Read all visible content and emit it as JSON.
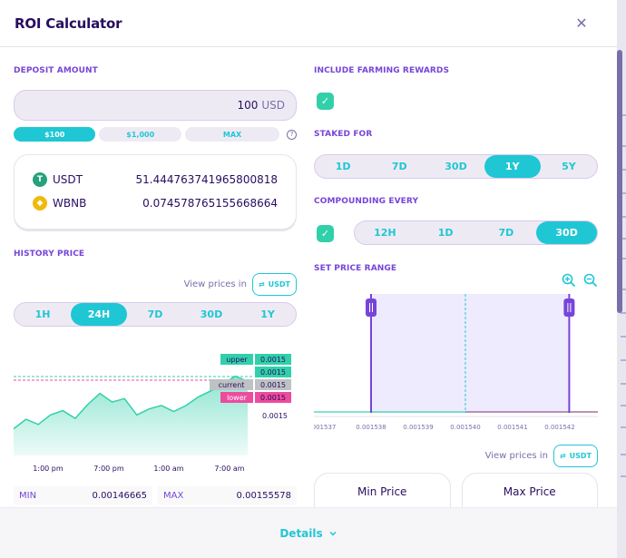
{
  "modal": {
    "title": "ROI Calculator",
    "close_glyph": "✕"
  },
  "deposit": {
    "label": "DEPOSIT AMOUNT",
    "value": "100",
    "unit": "USD",
    "presets": [
      "$100",
      "$1,000",
      "MAX"
    ],
    "active_preset": "$100",
    "help_glyph": "?"
  },
  "tokens": [
    {
      "symbol": "USDT",
      "amount": "51.444763741965800818",
      "color": "#26a17b",
      "glyph": "T"
    },
    {
      "symbol": "WBNB",
      "amount": "0.074578765155668664",
      "color": "#f0b90b",
      "glyph": "◆"
    }
  ],
  "history": {
    "label": "HISTORY PRICE",
    "view_prices_in": "View prices in",
    "currency_button": "USDT",
    "ranges": [
      "1H",
      "24H",
      "7D",
      "30D",
      "1Y"
    ],
    "active_range": "24H",
    "min_label": "MIN",
    "min_value": "0.00146665",
    "max_label": "MAX",
    "max_value": "0.00155578"
  },
  "chart_data": {
    "type": "area",
    "x_tick_labels": [
      "1:00 pm",
      "7:00 pm",
      "1:00 am",
      "7:00 am"
    ],
    "y": [
      0.001491,
      0.001502,
      0.001496,
      0.001507,
      0.001512,
      0.001503,
      0.001519,
      0.001532,
      0.001522,
      0.001526,
      0.001507,
      0.001514,
      0.001518,
      0.001511,
      0.001518,
      0.001528,
      0.001535,
      0.001543,
      0.001552,
      0.001546
    ],
    "ylim": [
      0.00146,
      0.00158
    ],
    "markers": [
      {
        "label": "upper",
        "value": "0.0015",
        "color": "#31d0aa"
      },
      {
        "label": "",
        "value": "0.0015",
        "color": "#31d0aa"
      },
      {
        "label": "current",
        "value": "0.0015",
        "color": "#bdc2c4"
      },
      {
        "label": "lower",
        "value": "0.0015",
        "color": "#ed4b9e"
      }
    ],
    "axis_value": "0.0015",
    "line_color": "#31d0aa",
    "upper_line_color": "#31d0aa",
    "lower_line_color": "#ed4b9e"
  },
  "farming": {
    "label": "INCLUDE FARMING REWARDS",
    "checked": true
  },
  "staked": {
    "label": "STAKED FOR",
    "options": [
      "1D",
      "7D",
      "30D",
      "1Y",
      "5Y"
    ],
    "active": "1Y"
  },
  "compounding": {
    "label": "COMPOUNDING EVERY",
    "checked": true,
    "options": [
      "12H",
      "1D",
      "7D",
      "30D"
    ],
    "active": "30D"
  },
  "range": {
    "label": "SET PRICE RANGE",
    "x_tick_labels": [
      "001537",
      "0.001538",
      "0.001539",
      "0.001540",
      "0.001541",
      "0.001542",
      "0.00"
    ],
    "min_price": 0.001538,
    "max_price": 0.0015422,
    "current_price": 0.00154,
    "view_prices_in": "View prices in",
    "currency_button": "USDT",
    "min_card": "Min Price",
    "max_card": "Max Price"
  },
  "footer": {
    "label": "Details"
  }
}
